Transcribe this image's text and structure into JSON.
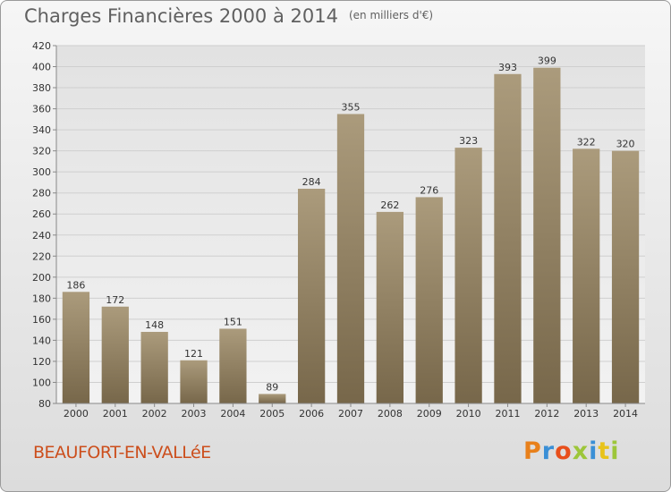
{
  "header": {
    "title": "Charges Financières 2000 à 2014",
    "unit": "(en milliers d'€)"
  },
  "footer": {
    "commune": "BEAUFORT-EN-VALLéE",
    "brand": "Proxiti",
    "brand_colors": [
      "#e8801b",
      "#3a8fd6",
      "#e84f1b",
      "#9dc63a",
      "#3a8fd6",
      "#e8c31b",
      "#9dc63a"
    ]
  },
  "colors": {
    "bar_light": "#ab9b7c",
    "bar_dark": "#77674a",
    "grid": "#cfcfcf",
    "axis": "#888888",
    "text": "#333333"
  },
  "chart_data": {
    "type": "bar",
    "title": "Charges Financières 2000 à 2014",
    "subtitle": "(en milliers d'€)",
    "xlabel": "",
    "ylabel": "",
    "categories": [
      "2000",
      "2001",
      "2002",
      "2003",
      "2004",
      "2005",
      "2006",
      "2007",
      "2008",
      "2009",
      "2010",
      "2011",
      "2012",
      "2013",
      "2014"
    ],
    "values": [
      186,
      172,
      148,
      121,
      151,
      89,
      284,
      355,
      262,
      276,
      323,
      393,
      399,
      322,
      320
    ],
    "ylim": [
      80,
      420
    ],
    "yticks": [
      80,
      100,
      120,
      140,
      160,
      180,
      200,
      220,
      240,
      260,
      280,
      300,
      320,
      340,
      360,
      380,
      400,
      420
    ],
    "grid": true,
    "legend": "none"
  }
}
